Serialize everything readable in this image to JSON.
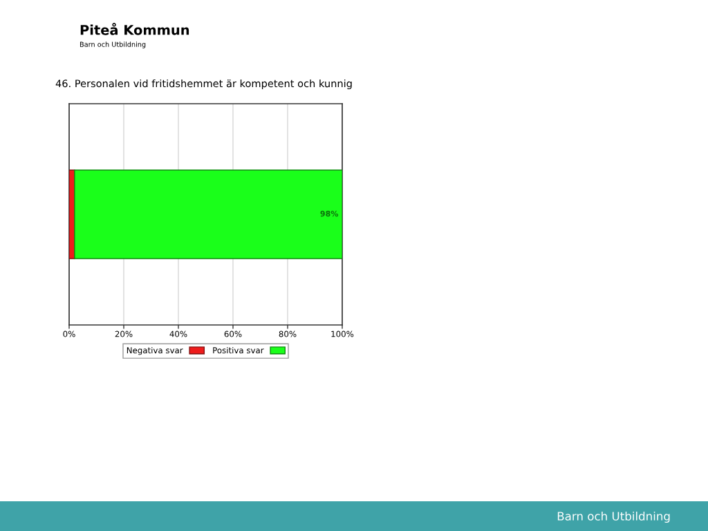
{
  "chart_data": {
    "type": "bar",
    "orientation": "horizontal",
    "stacked": true,
    "title": "46. Personalen vid fritidshemmet är kompetent och kunnig",
    "annotations": [
      "Piteå Kommun",
      "Barn och Utbildning",
      "Barn och Utbildning"
    ],
    "categories": [
      null
    ],
    "series": [
      {
        "name": "Negativa svar",
        "color": "#ee1c1c",
        "values": [
          2
        ],
        "value_labels": [
          null
        ]
      },
      {
        "name": "Positiva svar",
        "color": "#1aff1a",
        "values": [
          98
        ],
        "value_labels": [
          "98%"
        ]
      }
    ],
    "xlim": [
      0,
      100
    ],
    "xticks": [
      {
        "value": 0,
        "label": "0%"
      },
      {
        "value": 20,
        "label": "20%"
      },
      {
        "value": 40,
        "label": "40%"
      },
      {
        "value": 60,
        "label": "60%"
      },
      {
        "value": 80,
        "label": "80%"
      },
      {
        "value": 100,
        "label": "100%"
      }
    ],
    "grid": "x",
    "legend": "bottom",
    "tick_labels": "x"
  }
}
